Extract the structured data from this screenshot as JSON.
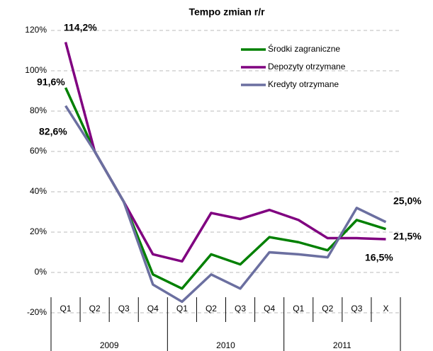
{
  "chart_data": {
    "type": "line",
    "title": "Tempo zmian r/r",
    "categories": [
      "Q1",
      "Q2",
      "Q3",
      "Q4",
      "Q1",
      "Q2",
      "Q3",
      "Q4",
      "Q1",
      "Q2",
      "Q3",
      "X"
    ],
    "groups": [
      "2009",
      "2010",
      "2011"
    ],
    "series": [
      {
        "name": "Środki zagraniczne",
        "color": "#008000",
        "values": [
          91.6,
          60,
          35,
          -1,
          -8,
          9,
          4,
          17.5,
          15,
          11,
          26,
          21.5
        ],
        "value_labels": [
          "91,6%",
          null,
          null,
          null,
          null,
          null,
          null,
          null,
          null,
          null,
          null,
          "21,5%"
        ]
      },
      {
        "name": "Depozyty otrzymane",
        "color": "#800080",
        "values": [
          114.2,
          60,
          35,
          9,
          5.5,
          29.5,
          26.5,
          31,
          26,
          17,
          17,
          16.5
        ],
        "value_labels": [
          "114,2%",
          null,
          null,
          null,
          null,
          null,
          null,
          null,
          null,
          null,
          null,
          "16,5%"
        ]
      },
      {
        "name": "Kredyty otrzymane",
        "color": "#6b6fa0",
        "values": [
          82.6,
          60,
          35,
          -6,
          -14.5,
          -1,
          -8,
          10,
          9,
          7.5,
          32,
          25.0
        ],
        "value_labels": [
          "82,6%",
          null,
          null,
          null,
          null,
          null,
          null,
          null,
          null,
          null,
          null,
          "25,0%"
        ]
      }
    ],
    "ylim": [
      -20,
      120
    ],
    "yticks": [
      {
        "value": -20,
        "label": "-20%"
      },
      {
        "value": 0,
        "label": "0%"
      },
      {
        "value": 20,
        "label": "20%"
      },
      {
        "value": 40,
        "label": "40%"
      },
      {
        "value": 60,
        "label": "60%"
      },
      {
        "value": 80,
        "label": "80%"
      },
      {
        "value": 100,
        "label": "100%"
      },
      {
        "value": 120,
        "label": "120%"
      }
    ],
    "grid": true,
    "legend": "upper right"
  }
}
